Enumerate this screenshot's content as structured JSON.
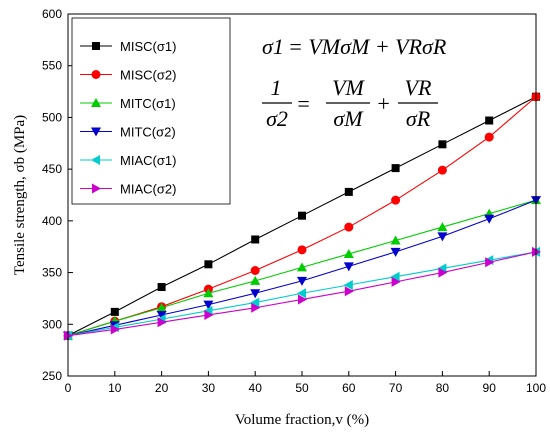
{
  "chart_data": {
    "type": "line",
    "xlabel": "Volume fraction,v (%)",
    "ylabel": "Tensile strength, σb (MPa)",
    "xlim": [
      0,
      100
    ],
    "ylim": [
      250,
      600
    ],
    "xticks": [
      0,
      10,
      20,
      30,
      40,
      50,
      60,
      70,
      80,
      90,
      100
    ],
    "yticks": [
      250,
      300,
      350,
      400,
      450,
      500,
      550,
      600
    ],
    "x": [
      0,
      10,
      20,
      30,
      40,
      50,
      60,
      70,
      80,
      90,
      100
    ],
    "legend_position": "top-left",
    "series": [
      {
        "name": "MISC(σ1)",
        "color": "#000000",
        "marker": "square",
        "values": [
          289,
          312,
          336,
          358,
          382,
          405,
          428,
          451,
          474,
          497,
          520
        ]
      },
      {
        "name": "MISC(σ2)",
        "color": "#ff0000",
        "marker": "circle",
        "values": [
          289,
          303,
          317,
          334,
          352,
          372,
          394,
          420,
          449,
          481,
          520
        ]
      },
      {
        "name": "MITC(σ1)",
        "color": "#00cc00",
        "marker": "triangle-up",
        "values": [
          289,
          303,
          316,
          330,
          342,
          355,
          368,
          381,
          394,
          407,
          420
        ]
      },
      {
        "name": "MITC(σ2)",
        "color": "#0000cc",
        "marker": "triangle-down",
        "values": [
          289,
          299,
          309,
          319,
          330,
          342,
          356,
          370,
          385,
          402,
          420
        ]
      },
      {
        "name": "MIAC(σ1)",
        "color": "#00cccc",
        "marker": "triangle-left",
        "values": [
          289,
          297,
          305,
          313,
          321,
          330,
          338,
          346,
          354,
          362,
          370
        ]
      },
      {
        "name": "MIAC(σ2)",
        "color": "#cc00cc",
        "marker": "triangle-right",
        "values": [
          289,
          295,
          302,
          309,
          316,
          324,
          332,
          341,
          350,
          360,
          370
        ]
      }
    ],
    "annotations": {
      "eq1": {
        "lhs": "σ1",
        "eq": " = ",
        "t1": "VMσM",
        "plus": " + ",
        "t2": "VRσR"
      },
      "eq2": {
        "num1": "1",
        "den1": "σ2",
        "eq": " = ",
        "num2": "VM",
        "den2": "σM",
        "plus": " + ",
        "num3": "VR",
        "den3": "σR"
      }
    }
  }
}
